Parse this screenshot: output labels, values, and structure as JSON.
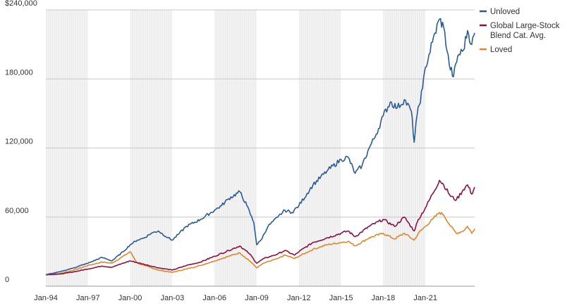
{
  "chart_data": {
    "type": "line",
    "title": "",
    "xlabel": "",
    "ylabel": "",
    "x_ticks": [
      "Jan-94",
      "Jan-97",
      "Jan-00",
      "Jan-03",
      "Jan-06",
      "Jan-09",
      "Jan-12",
      "Jan-15",
      "Jan-18",
      "Jan-21"
    ],
    "y_ticks": [
      {
        "value": 0,
        "label": "0"
      },
      {
        "value": 60000,
        "label": "60,000"
      },
      {
        "value": 120000,
        "label": "120,000"
      },
      {
        "value": 180000,
        "label": "180,000"
      },
      {
        "value": 240000,
        "label": "$240,000"
      }
    ],
    "xlim": [
      1994.0,
      2024.5
    ],
    "ylim": [
      0,
      240000
    ],
    "grid": "horizontal",
    "legend_position": "top-right",
    "shaded_periods": [
      [
        1994.0,
        1997.0
      ],
      [
        2000.0,
        2003.0
      ],
      [
        2006.0,
        2009.0
      ],
      [
        2012.0,
        2015.0
      ],
      [
        2018.0,
        2021.0
      ]
    ],
    "series": [
      {
        "name": "Unloved",
        "color": "#2c5a93",
        "points": [
          [
            1994.0,
            10000
          ],
          [
            1995.0,
            12500
          ],
          [
            1996.0,
            16000
          ],
          [
            1997.0,
            20000
          ],
          [
            1998.0,
            25000
          ],
          [
            1998.7,
            22000
          ],
          [
            1999.5,
            30000
          ],
          [
            2000.0,
            36000
          ],
          [
            2000.5,
            40000
          ],
          [
            2001.0,
            42000
          ],
          [
            2001.5,
            46000
          ],
          [
            2002.0,
            48000
          ],
          [
            2002.7,
            42000
          ],
          [
            2003.0,
            40000
          ],
          [
            2003.5,
            46000
          ],
          [
            2004.0,
            52000
          ],
          [
            2005.0,
            58000
          ],
          [
            2006.0,
            66000
          ],
          [
            2006.5,
            70000
          ],
          [
            2007.0,
            76000
          ],
          [
            2007.8,
            82000
          ],
          [
            2008.3,
            70000
          ],
          [
            2008.8,
            55000
          ],
          [
            2009.0,
            36000
          ],
          [
            2009.3,
            40000
          ],
          [
            2009.8,
            52000
          ],
          [
            2010.5,
            60000
          ],
          [
            2011.0,
            66000
          ],
          [
            2011.5,
            64000
          ],
          [
            2012.0,
            70000
          ],
          [
            2013.0,
            88000
          ],
          [
            2014.0,
            100000
          ],
          [
            2015.0,
            110000
          ],
          [
            2015.5,
            112000
          ],
          [
            2016.0,
            98000
          ],
          [
            2016.5,
            105000
          ],
          [
            2017.0,
            120000
          ],
          [
            2017.5,
            132000
          ],
          [
            2018.0,
            148000
          ],
          [
            2018.5,
            160000
          ],
          [
            2019.0,
            155000
          ],
          [
            2019.5,
            162000
          ],
          [
            2020.0,
            152000
          ],
          [
            2020.2,
            125000
          ],
          [
            2020.4,
            148000
          ],
          [
            2020.8,
            172000
          ],
          [
            2021.0,
            190000
          ],
          [
            2021.5,
            212000
          ],
          [
            2022.0,
            232000
          ],
          [
            2022.3,
            225000
          ],
          [
            2022.7,
            192000
          ],
          [
            2023.0,
            182000
          ],
          [
            2023.3,
            200000
          ],
          [
            2023.7,
            205000
          ],
          [
            2024.0,
            222000
          ],
          [
            2024.3,
            210000
          ],
          [
            2024.5,
            220000
          ]
        ]
      },
      {
        "name": "Global Large-Stock Blend Cat. Avg.",
        "color": "#8a1243",
        "points": [
          [
            1994.0,
            10000
          ],
          [
            1995.0,
            10500
          ],
          [
            1996.0,
            12500
          ],
          [
            1997.0,
            15000
          ],
          [
            1998.0,
            17500
          ],
          [
            1998.7,
            16500
          ],
          [
            1999.5,
            20000
          ],
          [
            2000.0,
            22000
          ],
          [
            2001.0,
            19000
          ],
          [
            2002.0,
            16000
          ],
          [
            2003.0,
            14000
          ],
          [
            2004.0,
            18000
          ],
          [
            2005.0,
            21000
          ],
          [
            2006.0,
            26000
          ],
          [
            2007.0,
            31000
          ],
          [
            2007.8,
            35000
          ],
          [
            2008.5,
            28000
          ],
          [
            2009.0,
            20000
          ],
          [
            2009.5,
            24000
          ],
          [
            2010.5,
            28000
          ],
          [
            2011.0,
            31000
          ],
          [
            2011.7,
            27000
          ],
          [
            2012.0,
            30000
          ],
          [
            2013.0,
            38000
          ],
          [
            2014.0,
            42000
          ],
          [
            2015.0,
            46000
          ],
          [
            2015.5,
            48000
          ],
          [
            2016.0,
            43000
          ],
          [
            2017.0,
            52000
          ],
          [
            2018.0,
            58000
          ],
          [
            2018.8,
            52000
          ],
          [
            2019.5,
            60000
          ],
          [
            2020.2,
            48000
          ],
          [
            2020.5,
            58000
          ],
          [
            2021.0,
            68000
          ],
          [
            2021.5,
            80000
          ],
          [
            2022.0,
            92000
          ],
          [
            2022.3,
            88000
          ],
          [
            2022.8,
            78000
          ],
          [
            2023.2,
            75000
          ],
          [
            2023.7,
            84000
          ],
          [
            2024.0,
            88000
          ],
          [
            2024.3,
            80000
          ],
          [
            2024.5,
            86000
          ]
        ]
      },
      {
        "name": "Loved",
        "color": "#e0862e",
        "points": [
          [
            1994.0,
            10000
          ],
          [
            1995.0,
            11000
          ],
          [
            1996.0,
            14000
          ],
          [
            1997.0,
            18000
          ],
          [
            1998.0,
            21000
          ],
          [
            1998.7,
            20000
          ],
          [
            1999.5,
            26000
          ],
          [
            2000.0,
            30000
          ],
          [
            2000.5,
            20000
          ],
          [
            2001.0,
            18000
          ],
          [
            2002.0,
            14000
          ],
          [
            2003.0,
            12000
          ],
          [
            2004.0,
            15000
          ],
          [
            2005.0,
            18000
          ],
          [
            2006.0,
            22000
          ],
          [
            2007.0,
            26000
          ],
          [
            2007.8,
            29000
          ],
          [
            2008.5,
            22000
          ],
          [
            2009.0,
            16000
          ],
          [
            2009.5,
            20000
          ],
          [
            2010.5,
            24000
          ],
          [
            2011.0,
            27000
          ],
          [
            2011.7,
            24000
          ],
          [
            2012.0,
            26000
          ],
          [
            2013.0,
            32000
          ],
          [
            2014.0,
            36000
          ],
          [
            2015.0,
            38000
          ],
          [
            2015.5,
            39000
          ],
          [
            2016.0,
            35000
          ],
          [
            2017.0,
            42000
          ],
          [
            2018.0,
            46000
          ],
          [
            2018.8,
            41000
          ],
          [
            2019.5,
            46000
          ],
          [
            2020.2,
            40000
          ],
          [
            2020.5,
            46000
          ],
          [
            2021.0,
            52000
          ],
          [
            2021.5,
            58000
          ],
          [
            2022.0,
            64000
          ],
          [
            2022.3,
            62000
          ],
          [
            2022.8,
            52000
          ],
          [
            2023.2,
            46000
          ],
          [
            2023.7,
            48000
          ],
          [
            2024.0,
            52000
          ],
          [
            2024.3,
            46000
          ],
          [
            2024.5,
            50000
          ]
        ]
      }
    ]
  }
}
